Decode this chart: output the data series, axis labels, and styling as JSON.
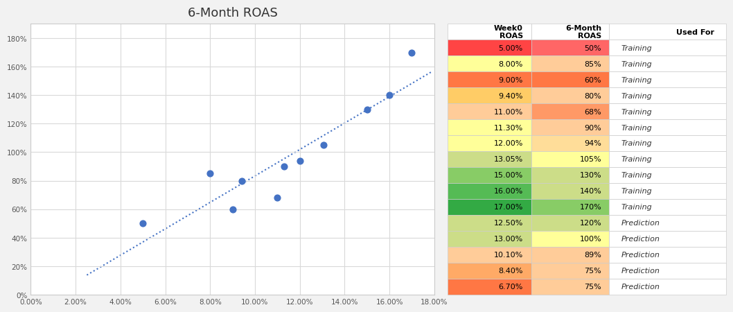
{
  "title": "6-Month ROAS",
  "scatter_x": [
    0.05,
    0.08,
    0.09,
    0.094,
    0.11,
    0.113,
    0.12,
    0.1305,
    0.15,
    0.16,
    0.17
  ],
  "scatter_y": [
    0.5,
    0.85,
    0.6,
    0.8,
    0.68,
    0.9,
    0.94,
    1.05,
    1.3,
    1.4,
    1.7
  ],
  "xlim": [
    0.0,
    0.18
  ],
  "ylim": [
    0.0,
    1.9
  ],
  "xticks": [
    0.0,
    0.02,
    0.04,
    0.06,
    0.08,
    0.1,
    0.12,
    0.14,
    0.16,
    0.18
  ],
  "yticks": [
    0.0,
    0.2,
    0.4,
    0.6,
    0.8,
    1.0,
    1.2,
    1.4,
    1.6,
    1.8
  ],
  "scatter_color": "#4472C4",
  "trendline_color": "#4472C4",
  "background_color": "#f2f2f2",
  "plot_bg_color": "#ffffff",
  "grid_color": "#d9d9d9",
  "table_headers": [
    "Week0\nROAS",
    "6-Month\nROAS",
    "Used For"
  ],
  "table_data": [
    [
      "5.00%",
      "50%",
      "Training"
    ],
    [
      "8.00%",
      "85%",
      "Training"
    ],
    [
      "9.00%",
      "60%",
      "Training"
    ],
    [
      "9.40%",
      "80%",
      "Training"
    ],
    [
      "11.00%",
      "68%",
      "Training"
    ],
    [
      "11.30%",
      "90%",
      "Training"
    ],
    [
      "12.00%",
      "94%",
      "Training"
    ],
    [
      "13.05%",
      "105%",
      "Training"
    ],
    [
      "15.00%",
      "130%",
      "Training"
    ],
    [
      "16.00%",
      "140%",
      "Training"
    ],
    [
      "17.00%",
      "170%",
      "Training"
    ],
    [
      "12.50%",
      "120%",
      "Prediction"
    ],
    [
      "13.00%",
      "100%",
      "Prediction"
    ],
    [
      "10.10%",
      "89%",
      "Prediction"
    ],
    [
      "8.40%",
      "75%",
      "Prediction"
    ],
    [
      "6.70%",
      "75%",
      "Prediction"
    ]
  ],
  "col0_colors": [
    "#FF4444",
    "#FFFF99",
    "#FF7744",
    "#FFCC66",
    "#FFCC99",
    "#FFFF99",
    "#FFFF99",
    "#CCDD88",
    "#88CC66",
    "#55BB55",
    "#33AA44",
    "#CCDD88",
    "#CCDD88",
    "#FFCC99",
    "#FFAA66",
    "#FF7744"
  ],
  "col1_colors": [
    "#FF6666",
    "#FFCC99",
    "#FF7744",
    "#FFCC99",
    "#FF9966",
    "#FFCC99",
    "#FFDD99",
    "#FFFF99",
    "#CCDD88",
    "#CCDD88",
    "#88CC66",
    "#CCDD88",
    "#FFFF99",
    "#FFCC99",
    "#FFCC99",
    "#FFCC99"
  ]
}
